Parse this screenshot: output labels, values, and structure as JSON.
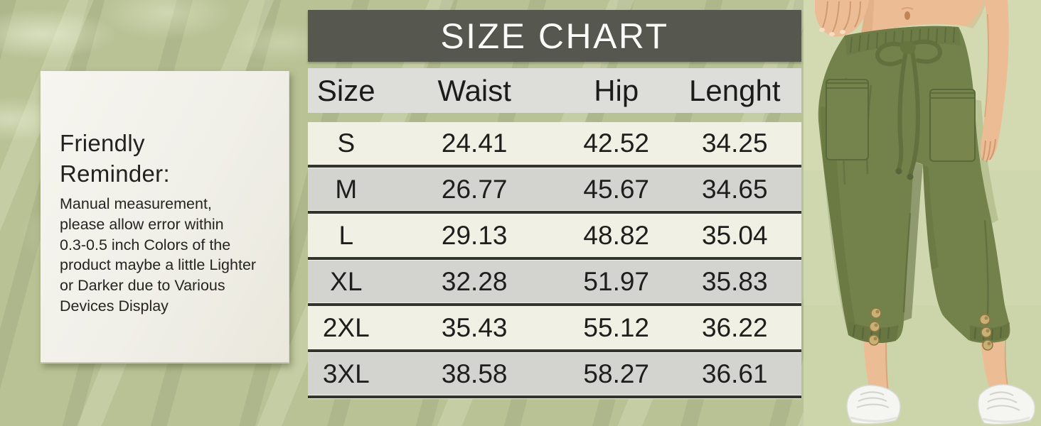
{
  "reminder_card": {
    "title": "Friendly\nReminder:",
    "body": "Manual measurement,\nplease allow error within\n0.3-0.5 inch Colors of the\nproduct maybe a little Lighter\nor Darker due to Various\nDevices Display"
  },
  "size_chart": {
    "title": "SIZE CHART",
    "columns": [
      "Size",
      "Waist",
      "Hip",
      "Lenght"
    ],
    "rows": [
      {
        "size": "S",
        "waist": "24.41",
        "hip": "42.52",
        "length": "34.25"
      },
      {
        "size": "M",
        "waist": "26.77",
        "hip": "45.67",
        "length": "34.65"
      },
      {
        "size": "L",
        "waist": "29.13",
        "hip": "48.82",
        "length": "35.04"
      },
      {
        "size": "XL",
        "waist": "32.28",
        "hip": "51.97",
        "length": "35.83"
      },
      {
        "size": "2XL",
        "waist": "35.43",
        "hip": "55.12",
        "length": "36.22"
      },
      {
        "size": "3XL",
        "waist": "38.58",
        "hip": "58.27",
        "length": "36.61"
      }
    ]
  },
  "chart_data": {
    "type": "table",
    "title": "SIZE CHART",
    "columns": [
      "Size",
      "Waist",
      "Hip",
      "Lenght"
    ],
    "rows": [
      [
        "S",
        24.41,
        42.52,
        34.25
      ],
      [
        "M",
        26.77,
        45.67,
        34.65
      ],
      [
        "L",
        29.13,
        48.82,
        35.04
      ],
      [
        "XL",
        32.28,
        51.97,
        35.83
      ],
      [
        "2XL",
        35.43,
        55.12,
        36.22
      ],
      [
        "3XL",
        38.58,
        58.27,
        36.61
      ]
    ],
    "units": "inches"
  },
  "photo": {
    "label": "model wearing olive green drawstring capri pants with patch pockets, cuff buttons and white sneakers"
  },
  "colors": {
    "page_bg": "#b9c295",
    "title_bar": "#565850",
    "row_light": "#f0f1e4",
    "row_dark": "#d3d4d0",
    "card_bg": "#f1f0e9",
    "pants_green": "#73814a",
    "photo_bg": "#cfd7ae"
  }
}
